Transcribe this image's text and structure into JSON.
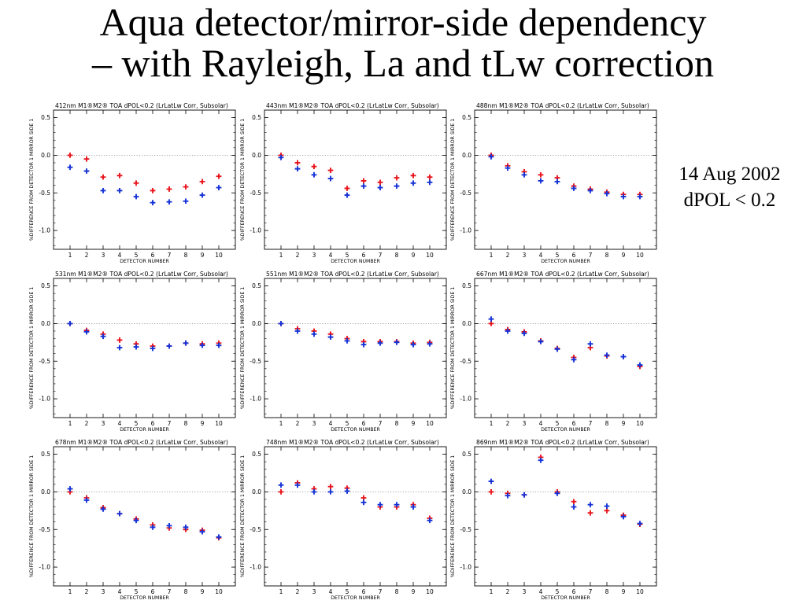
{
  "slide": {
    "title_line1": "Aqua detector/mirror-side dependency",
    "title_line2": "– with Rayleigh, La and tLw correction",
    "note_line1": "14 Aug 2002",
    "note_line2": "dPOL < 0.2"
  },
  "colors": {
    "mirror_side_1": "#e8141b",
    "mirror_side_2": "#1432d6",
    "zero_line": "#8a8a8a"
  },
  "chart_data": [
    {
      "type": "scatter",
      "title": "412nm M1®M2® TOA dPOL<0.2 (LrLatLw Corr, Subsolar)",
      "xlabel": "DETECTOR NUMBER",
      "ylabel": "%DIFFERENCE FROM DETECTOR 1 MIRROR SIDE 1",
      "x": [
        1,
        2,
        3,
        4,
        5,
        6,
        7,
        8,
        9,
        10
      ],
      "xlim": [
        0,
        11
      ],
      "ylim": [
        -1.25,
        0.6
      ],
      "yticks": [
        0.5,
        0.0,
        -0.5,
        -1.0
      ],
      "series": [
        {
          "values": [
            0.0,
            -0.05,
            -0.29,
            -0.27,
            -0.37,
            -0.47,
            -0.45,
            -0.42,
            -0.35,
            -0.28
          ]
        },
        {
          "values": [
            -0.16,
            -0.21,
            -0.47,
            -0.47,
            -0.55,
            -0.63,
            -0.62,
            -0.61,
            -0.53,
            -0.43
          ]
        }
      ]
    },
    {
      "type": "scatter",
      "title": "443nm M1®M2® TOA dPOL<0.2 (LrLatLw Corr, Subsolar)",
      "xlabel": "DETECTOR NUMBER",
      "ylabel": "%DIFFERENCE FROM DETECTOR 1 MIRROR SIDE 1",
      "x": [
        1,
        2,
        3,
        4,
        5,
        6,
        7,
        8,
        9,
        10
      ],
      "xlim": [
        0,
        11
      ],
      "ylim": [
        -1.25,
        0.6
      ],
      "yticks": [
        0.5,
        0.0,
        -0.5,
        -1.0
      ],
      "series": [
        {
          "values": [
            0.0,
            -0.1,
            -0.15,
            -0.2,
            -0.44,
            -0.34,
            -0.36,
            -0.3,
            -0.27,
            -0.29
          ]
        },
        {
          "values": [
            -0.03,
            -0.18,
            -0.26,
            -0.31,
            -0.53,
            -0.41,
            -0.43,
            -0.41,
            -0.37,
            -0.36
          ]
        }
      ]
    },
    {
      "type": "scatter",
      "title": "488nm M1®M2® TOA dPOL<0.2 (LrLatLw Corr, Subsolar)",
      "xlabel": "DETECTOR NUMBER",
      "ylabel": "%DIFFERENCE FROM DETECTOR 1 MIRROR SIDE 1",
      "x": [
        1,
        2,
        3,
        4,
        5,
        6,
        7,
        8,
        9,
        10
      ],
      "xlim": [
        0,
        11
      ],
      "ylim": [
        -1.25,
        0.6
      ],
      "yticks": [
        0.5,
        0.0,
        -0.5,
        -1.0
      ],
      "series": [
        {
          "values": [
            0.0,
            -0.14,
            -0.22,
            -0.26,
            -0.3,
            -0.41,
            -0.45,
            -0.49,
            -0.52,
            -0.52
          ]
        },
        {
          "values": [
            -0.02,
            -0.17,
            -0.26,
            -0.34,
            -0.35,
            -0.44,
            -0.47,
            -0.51,
            -0.55,
            -0.55
          ]
        }
      ]
    },
    {
      "type": "scatter",
      "title": "531nm M1®M2® TOA dPOL<0.2 (LrLatLw Corr, Subsolar)",
      "xlabel": "DETECTOR NUMBER",
      "ylabel": "%DIFFERENCE FROM DETECTOR 1 MIRROR SIDE 1",
      "x": [
        1,
        2,
        3,
        4,
        5,
        6,
        7,
        8,
        9,
        10
      ],
      "xlim": [
        0,
        11
      ],
      "ylim": [
        -1.25,
        0.6
      ],
      "yticks": [
        0.5,
        0.0,
        -0.5,
        -1.0
      ],
      "series": [
        {
          "values": [
            0.0,
            -0.09,
            -0.14,
            -0.22,
            -0.27,
            -0.3,
            -0.3,
            -0.26,
            -0.27,
            -0.26
          ]
        },
        {
          "values": [
            0.0,
            -0.11,
            -0.17,
            -0.32,
            -0.31,
            -0.33,
            -0.3,
            -0.26,
            -0.29,
            -0.29
          ]
        }
      ]
    },
    {
      "type": "scatter",
      "title": "551nm M1®M2® TOA dPOL<0.2 (LrLatLw Corr, Subsolar)",
      "xlabel": "DETECTOR NUMBER",
      "ylabel": "%DIFFERENCE FROM DETECTOR 1 MIRROR SIDE 1",
      "x": [
        1,
        2,
        3,
        4,
        5,
        6,
        7,
        8,
        9,
        10
      ],
      "xlim": [
        0,
        11
      ],
      "ylim": [
        -1.25,
        0.6
      ],
      "yticks": [
        0.5,
        0.0,
        -0.5,
        -1.0
      ],
      "series": [
        {
          "values": [
            0.0,
            -0.07,
            -0.1,
            -0.14,
            -0.2,
            -0.24,
            -0.24,
            -0.24,
            -0.26,
            -0.25
          ]
        },
        {
          "values": [
            0.0,
            -0.1,
            -0.14,
            -0.18,
            -0.23,
            -0.28,
            -0.26,
            -0.25,
            -0.28,
            -0.27
          ]
        }
      ]
    },
    {
      "type": "scatter",
      "title": "667nm M1®M2® TOA dPOL<0.2 (LrLatLw Corr, Subsolar)",
      "xlabel": "DETECTOR NUMBER",
      "ylabel": "%DIFFERENCE FROM DETECTOR 1 MIRROR SIDE 1",
      "x": [
        1,
        2,
        3,
        4,
        5,
        6,
        7,
        8,
        9,
        10
      ],
      "xlim": [
        0,
        11
      ],
      "ylim": [
        -1.25,
        0.6
      ],
      "yticks": [
        0.5,
        0.0,
        -0.5,
        -1.0
      ],
      "series": [
        {
          "values": [
            0.0,
            -0.08,
            -0.11,
            -0.23,
            -0.33,
            -0.45,
            -0.32,
            -0.43,
            -0.44,
            -0.57
          ]
        },
        {
          "values": [
            0.06,
            -0.1,
            -0.13,
            -0.24,
            -0.34,
            -0.48,
            -0.27,
            -0.42,
            -0.44,
            -0.55
          ]
        }
      ]
    },
    {
      "type": "scatter",
      "title": "678nm M1®M2® TOA dPOL<0.2 (LrLatLw Corr, Subsolar)",
      "xlabel": "DETECTOR NUMBER",
      "ylabel": "%DIFFERENCE FROM DETECTOR 1 MIRROR SIDE 1",
      "x": [
        1,
        2,
        3,
        4,
        5,
        6,
        7,
        8,
        9,
        10
      ],
      "xlim": [
        0,
        11
      ],
      "ylim": [
        -1.25,
        0.6
      ],
      "yticks": [
        0.5,
        0.0,
        -0.5,
        -1.0
      ],
      "series": [
        {
          "values": [
            0.0,
            -0.08,
            -0.21,
            -0.29,
            -0.36,
            -0.44,
            -0.48,
            -0.5,
            -0.51,
            -0.61
          ]
        },
        {
          "values": [
            0.04,
            -0.11,
            -0.23,
            -0.29,
            -0.38,
            -0.47,
            -0.45,
            -0.47,
            -0.53,
            -0.6
          ]
        }
      ]
    },
    {
      "type": "scatter",
      "title": "748nm M1®M2® TOA dPOL<0.2 (LrLatLw Corr, Subsolar)",
      "xlabel": "DETECTOR NUMBER",
      "ylabel": "%DIFFERENCE FROM DETECTOR 1 MIRROR SIDE 1",
      "x": [
        1,
        2,
        3,
        4,
        5,
        6,
        7,
        8,
        9,
        10
      ],
      "xlim": [
        0,
        11
      ],
      "ylim": [
        -1.25,
        0.6
      ],
      "yticks": [
        0.5,
        0.0,
        -0.5,
        -1.0
      ],
      "series": [
        {
          "values": [
            0.0,
            0.12,
            0.04,
            0.07,
            0.05,
            -0.08,
            -0.2,
            -0.2,
            -0.17,
            -0.35
          ]
        },
        {
          "values": [
            0.09,
            0.09,
            0.0,
            0.0,
            0.01,
            -0.14,
            -0.17,
            -0.17,
            -0.2,
            -0.38
          ]
        }
      ]
    },
    {
      "type": "scatter",
      "title": "869nm M1®M2® TOA dPOL<0.2 (LrLatLw Corr, Subsolar)",
      "xlabel": "DETECTOR NUMBER",
      "ylabel": "%DIFFERENCE FROM DETECTOR 1 MIRROR SIDE 1",
      "x": [
        1,
        2,
        3,
        4,
        5,
        6,
        7,
        8,
        9,
        10
      ],
      "xlim": [
        0,
        11
      ],
      "ylim": [
        -1.25,
        0.6
      ],
      "yticks": [
        0.5,
        0.0,
        -0.5,
        -1.0
      ],
      "series": [
        {
          "values": [
            0.0,
            -0.02,
            -0.04,
            0.46,
            0.0,
            -0.13,
            -0.28,
            -0.25,
            -0.31,
            -0.43
          ]
        },
        {
          "values": [
            0.14,
            -0.05,
            -0.04,
            0.42,
            -0.02,
            -0.2,
            -0.17,
            -0.19,
            -0.33,
            -0.42
          ]
        }
      ]
    }
  ]
}
